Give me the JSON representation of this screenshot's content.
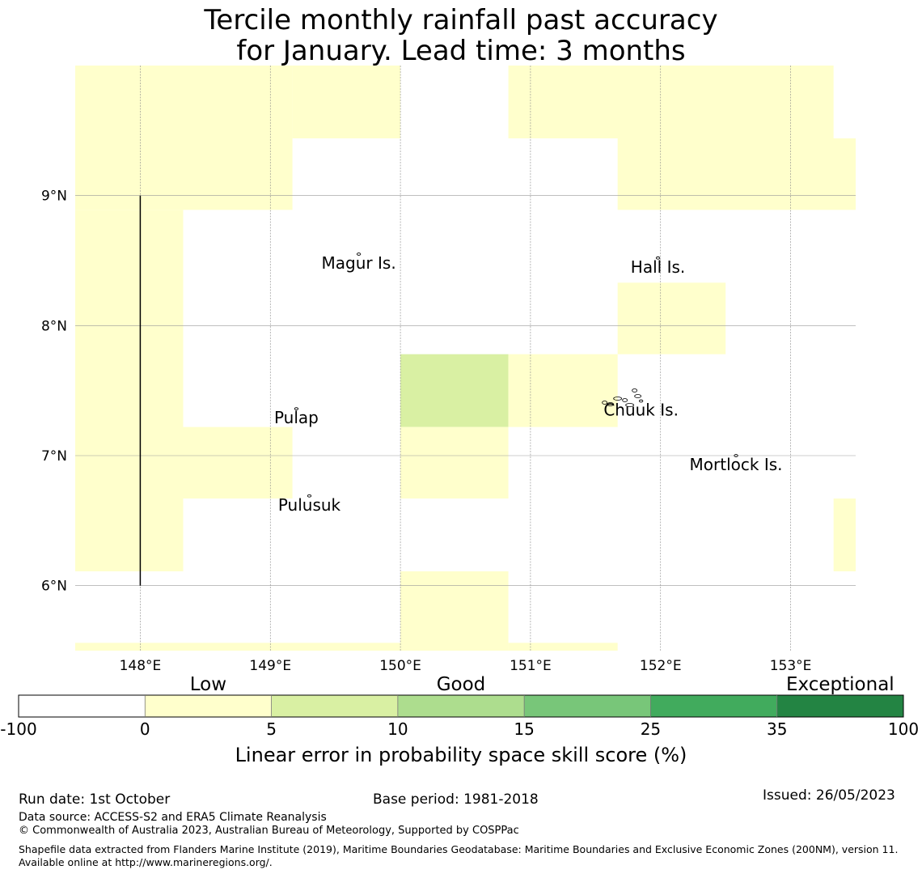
{
  "title": {
    "line1": "Tercile monthly rainfall past accuracy",
    "line2": "for January. Lead time: 3 months"
  },
  "map": {
    "lon_range": [
      147.5,
      153.5
    ],
    "lat_range": [
      5.5,
      10.0
    ],
    "lon_ticks": [
      148,
      149,
      150,
      151,
      152,
      153
    ],
    "lon_tick_labels": [
      "148°E",
      "149°E",
      "150°E",
      "151°E",
      "152°E",
      "153°E"
    ],
    "lat_ticks": [
      6,
      7,
      8,
      9
    ],
    "lat_tick_labels": [
      "6°N",
      "7°N",
      "8°N",
      "9°N"
    ],
    "cells": [
      {
        "lon": [
          147.5,
          149.17
        ],
        "lat": [
          9.44,
          10.0
        ],
        "cat": 1
      },
      {
        "lon": [
          149.17,
          150.0
        ],
        "lat": [
          9.44,
          10.0
        ],
        "cat": 1
      },
      {
        "lon": [
          147.5,
          149.17
        ],
        "lat": [
          8.89,
          9.44
        ],
        "cat": 1
      },
      {
        "lon": [
          147.5,
          148.33
        ],
        "lat": [
          6.11,
          8.89
        ],
        "cat": 1
      },
      {
        "lon": [
          148.33,
          149.17
        ],
        "lat": [
          6.67,
          7.22
        ],
        "cat": 1
      },
      {
        "lon": [
          150.83,
          153.33
        ],
        "lat": [
          9.44,
          10.0
        ],
        "cat": 1
      },
      {
        "lon": [
          151.67,
          153.5
        ],
        "lat": [
          8.89,
          9.44
        ],
        "cat": 1
      },
      {
        "lon": [
          151.67,
          152.5
        ],
        "lat": [
          7.78,
          8.33
        ],
        "cat": 1
      },
      {
        "lon": [
          150.0,
          150.83
        ],
        "lat": [
          7.22,
          7.78
        ],
        "cat": 2
      },
      {
        "lon": [
          150.83,
          151.67
        ],
        "lat": [
          7.22,
          7.78
        ],
        "cat": 1
      },
      {
        "lon": [
          150.0,
          150.83
        ],
        "lat": [
          6.67,
          7.22
        ],
        "cat": 1
      },
      {
        "lon": [
          153.33,
          153.5
        ],
        "lat": [
          6.11,
          6.67
        ],
        "cat": 1
      },
      {
        "lon": [
          150.0,
          150.83
        ],
        "lat": [
          5.5,
          6.11
        ],
        "cat": 1
      },
      {
        "lon": [
          147.5,
          150.0
        ],
        "lat": [
          5.5,
          5.56
        ],
        "cat": 1
      },
      {
        "lon": [
          150.83,
          151.67
        ],
        "lat": [
          5.5,
          5.56
        ],
        "cat": 1
      }
    ],
    "boundary_line": {
      "lon": 148.0,
      "lat": [
        6.0,
        9.0
      ]
    },
    "islands": [
      {
        "name": "Magur Is.",
        "lon": 149.68,
        "lat": 8.55
      },
      {
        "name": "Hall Is.",
        "lon": 151.98,
        "lat": 8.52
      },
      {
        "name": "Pulap",
        "lon": 149.2,
        "lat": 7.36
      },
      {
        "name": "Chuuk Is.",
        "lon": 151.85,
        "lat": 7.42
      },
      {
        "name": "Mortlock Is.",
        "lon": 152.58,
        "lat": 7.0
      },
      {
        "name": "Pulusuk",
        "lon": 149.3,
        "lat": 6.69
      }
    ]
  },
  "colorbar": {
    "category_labels": [
      "Low",
      "Good",
      "Exceptional"
    ],
    "bounds": [
      "-100",
      "0",
      "5",
      "10",
      "15",
      "25",
      "35",
      "100"
    ],
    "colors": [
      "#ffffff",
      "#ffffcc",
      "#d9f0a3",
      "#addd8e",
      "#78c679",
      "#41ab5d",
      "#238443"
    ],
    "label": "Linear error in probability space skill score (%)"
  },
  "footer": {
    "run_date": "Run date: 1st October",
    "base_period": "Base period: 1981-2018",
    "issued": "Issued: 26/05/2023",
    "data_source": "Data source: ACCESS-S2 and ERA5 Climate Reanalysis",
    "copyright": "© Commonwealth of Australia 2023, Australian Bureau of Meteorology, Supported by COSPPac",
    "shapefile": "Shapefile data extracted from Flanders Marine Institute (2019), Maritime Boundaries Geodatabase: Maritime Boundaries and Exclusive Economic Zones (200NM), version 11. Available online at http://www.marineregions.org/."
  }
}
